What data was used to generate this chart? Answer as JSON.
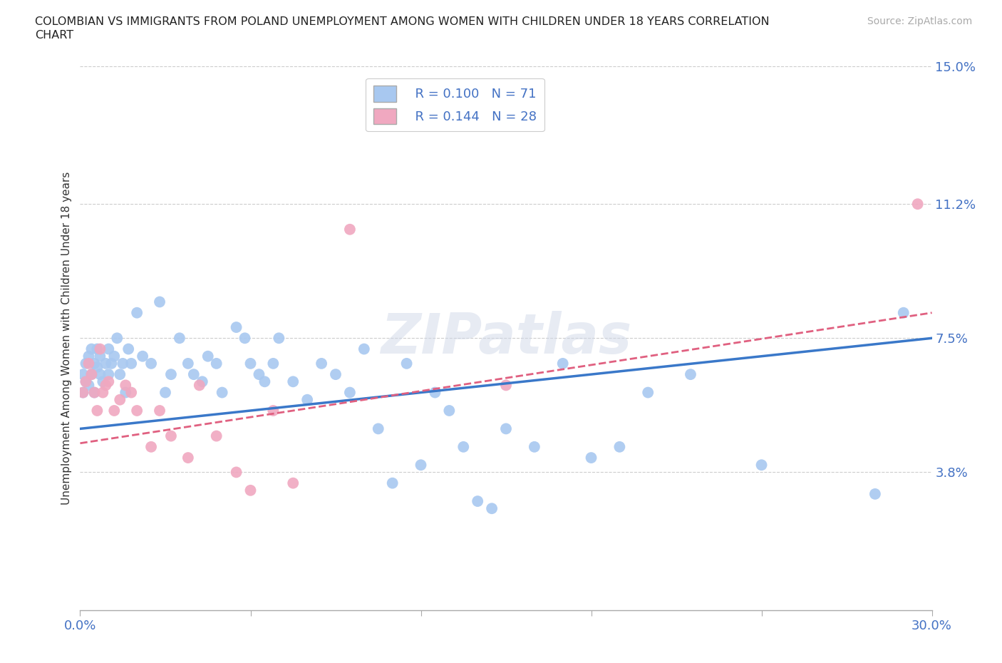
{
  "title_line1": "COLOMBIAN VS IMMIGRANTS FROM POLAND UNEMPLOYMENT AMONG WOMEN WITH CHILDREN UNDER 18 YEARS CORRELATION",
  "title_line2": "CHART",
  "source": "Source: ZipAtlas.com",
  "ylabel": "Unemployment Among Women with Children Under 18 years",
  "xlim": [
    0.0,
    0.3
  ],
  "ylim": [
    0.0,
    0.15
  ],
  "yticks": [
    0.0,
    0.038,
    0.075,
    0.112,
    0.15
  ],
  "ytick_labels": [
    "",
    "3.8%",
    "7.5%",
    "11.2%",
    "15.0%"
  ],
  "colombians_R": 0.1,
  "colombians_N": 71,
  "poland_R": 0.144,
  "poland_N": 28,
  "colombian_color": "#a8c8f0",
  "poland_color": "#f0a8c0",
  "colombian_line_color": "#3a78c9",
  "poland_line_color": "#e06080",
  "background_color": "#ffffff",
  "grid_color": "#cccccc",
  "colombian_x": [
    0.001,
    0.001,
    0.002,
    0.002,
    0.003,
    0.003,
    0.004,
    0.004,
    0.005,
    0.005,
    0.006,
    0.006,
    0.007,
    0.007,
    0.008,
    0.009,
    0.01,
    0.01,
    0.011,
    0.012,
    0.013,
    0.014,
    0.015,
    0.016,
    0.017,
    0.018,
    0.02,
    0.022,
    0.025,
    0.028,
    0.03,
    0.032,
    0.035,
    0.038,
    0.04,
    0.043,
    0.045,
    0.048,
    0.05,
    0.055,
    0.058,
    0.06,
    0.063,
    0.065,
    0.068,
    0.07,
    0.075,
    0.08,
    0.085,
    0.09,
    0.095,
    0.1,
    0.105,
    0.11,
    0.115,
    0.12,
    0.125,
    0.13,
    0.135,
    0.14,
    0.145,
    0.15,
    0.16,
    0.17,
    0.18,
    0.19,
    0.2,
    0.215,
    0.24,
    0.28,
    0.29
  ],
  "colombian_y": [
    0.06,
    0.065,
    0.063,
    0.068,
    0.062,
    0.07,
    0.065,
    0.072,
    0.06,
    0.068,
    0.072,
    0.067,
    0.07,
    0.065,
    0.063,
    0.068,
    0.072,
    0.065,
    0.068,
    0.07,
    0.075,
    0.065,
    0.068,
    0.06,
    0.072,
    0.068,
    0.082,
    0.07,
    0.068,
    0.085,
    0.06,
    0.065,
    0.075,
    0.068,
    0.065,
    0.063,
    0.07,
    0.068,
    0.06,
    0.078,
    0.075,
    0.068,
    0.065,
    0.063,
    0.068,
    0.075,
    0.063,
    0.058,
    0.068,
    0.065,
    0.06,
    0.072,
    0.05,
    0.035,
    0.068,
    0.04,
    0.06,
    0.055,
    0.045,
    0.03,
    0.028,
    0.05,
    0.045,
    0.068,
    0.042,
    0.045,
    0.06,
    0.065,
    0.04,
    0.032,
    0.082
  ],
  "poland_x": [
    0.001,
    0.002,
    0.003,
    0.004,
    0.005,
    0.006,
    0.007,
    0.008,
    0.009,
    0.01,
    0.012,
    0.014,
    0.016,
    0.018,
    0.02,
    0.025,
    0.028,
    0.032,
    0.038,
    0.042,
    0.048,
    0.055,
    0.06,
    0.068,
    0.075,
    0.095,
    0.15,
    0.295
  ],
  "poland_y": [
    0.06,
    0.063,
    0.068,
    0.065,
    0.06,
    0.055,
    0.072,
    0.06,
    0.062,
    0.063,
    0.055,
    0.058,
    0.062,
    0.06,
    0.055,
    0.045,
    0.055,
    0.048,
    0.042,
    0.062,
    0.048,
    0.038,
    0.033,
    0.055,
    0.035,
    0.105,
    0.062,
    0.112
  ]
}
